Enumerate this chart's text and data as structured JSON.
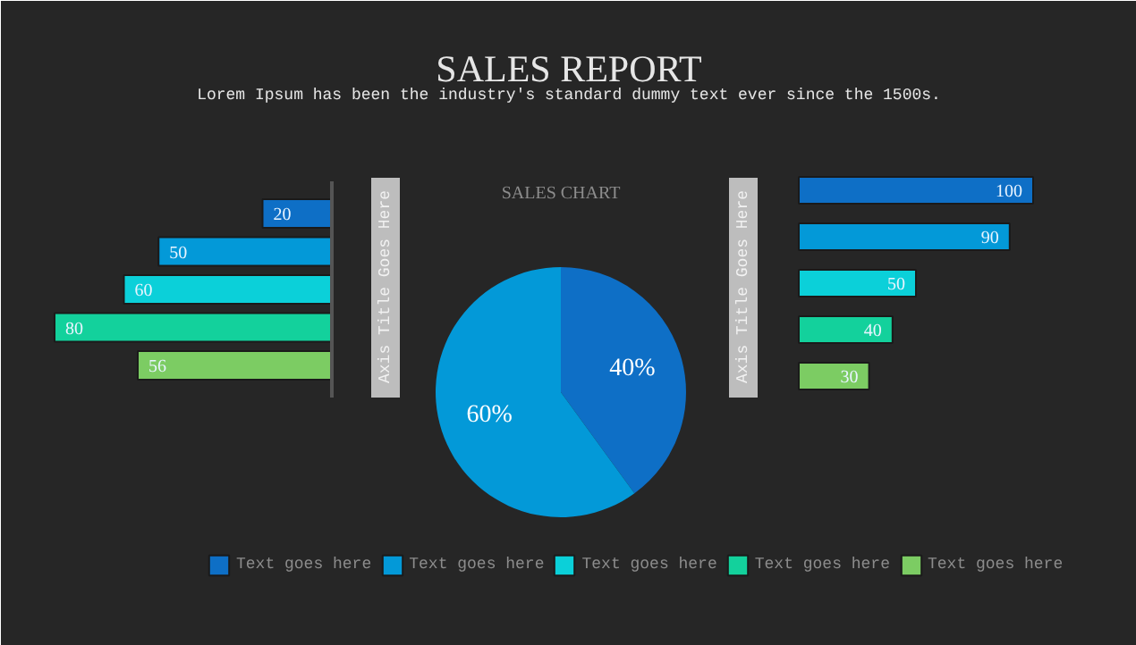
{
  "chart_data": [
    {
      "type": "bar",
      "orientation": "horizontal",
      "ylabel": "Axis Title Goes Here",
      "categories": [
        null
      ],
      "series": [
        {
          "name": "Text goes here",
          "color": "#0e6fc6",
          "values": [
            20
          ]
        },
        {
          "name": "Text goes here",
          "color": "#0399d8",
          "values": [
            50
          ]
        },
        {
          "name": "Text goes here",
          "color": "#0bd0d9",
          "values": [
            60
          ]
        },
        {
          "name": "Text goes here",
          "color": "#13d19c",
          "values": [
            80
          ]
        },
        {
          "name": "Text goes here",
          "color": "#7ccc63",
          "values": [
            56
          ]
        }
      ],
      "data_labels": true,
      "legend": "bottom",
      "tick_labels": false
    },
    {
      "type": "pie",
      "title": "SALES REPORT",
      "subtitle": "Lorem Ipsum has been the industry's standard dummy text ever since the 1500s.",
      "annotations": [
        "SALES CHART"
      ],
      "categories": [
        null,
        null
      ],
      "values": [
        40,
        60
      ],
      "colors": [
        "#0e6fc6",
        "#0399d8"
      ],
      "value_labels": [
        "40%",
        "60%"
      ]
    },
    {
      "type": "bar",
      "orientation": "horizontal",
      "ylabel": "Axis Title Goes Here",
      "categories": [
        null,
        null,
        null,
        null,
        null
      ],
      "values": [
        100,
        90,
        50,
        40,
        30
      ],
      "colors": [
        "#0e6fc6",
        "#0399d8",
        "#0bd0d9",
        "#13d19c",
        "#7ccc63"
      ],
      "data_labels": true,
      "tick_labels": false
    }
  ]
}
